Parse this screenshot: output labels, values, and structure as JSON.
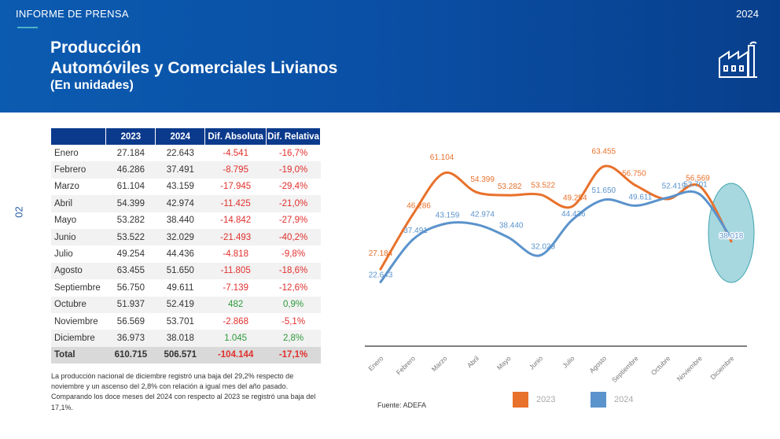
{
  "header": {
    "kicker": "INFORME DE PRENSA",
    "year": "2024",
    "title_line1": "Producción",
    "title_line2": "Automóviles y Comerciales Livianos",
    "subtitle": "(En unidades)",
    "icon": "factory-icon"
  },
  "page_number": "02",
  "table": {
    "columns": [
      "",
      "2023",
      "2024",
      "Dif. Absoluta",
      "Dif. Relativa"
    ],
    "rows": [
      [
        "Enero",
        "27.184",
        "22.643",
        "-4.541",
        "-16,7%"
      ],
      [
        "Febrero",
        "46.286",
        "37.491",
        "-8.795",
        "-19,0%"
      ],
      [
        "Marzo",
        "61.104",
        "43.159",
        "-17.945",
        "-29,4%"
      ],
      [
        "Abril",
        "54.399",
        "42.974",
        "-11.425",
        "-21,0%"
      ],
      [
        "Mayo",
        "53.282",
        "38.440",
        "-14.842",
        "-27,9%"
      ],
      [
        "Junio",
        "53.522",
        "32.029",
        "-21.493",
        "-40,2%"
      ],
      [
        "Julio",
        "49.254",
        "44.436",
        "-4.818",
        "-9,8%"
      ],
      [
        "Agosto",
        "63.455",
        "51.650",
        "-11.805",
        "-18,6%"
      ],
      [
        "Septiembre",
        "56.750",
        "49.611",
        "-7.139",
        "-12,6%"
      ],
      [
        "Octubre",
        "51.937",
        "52.419",
        "482",
        "0,9%"
      ],
      [
        "Noviembre",
        "56.569",
        "53.701",
        "-2.868",
        "-5,1%"
      ],
      [
        "Diciembre",
        "36.973",
        "38.018",
        "1.045",
        "2,8%"
      ]
    ],
    "total": [
      "Total",
      "610.715",
      "506.571",
      "-104.144",
      "-17,1%"
    ]
  },
  "note": {
    "line1": "La producción nacional de diciembre registró una baja del 29,2% respecto de noviembre y un ascenso del 2,8% con relación a igual mes del año pasado.",
    "line2": "Comparando los doce meses del 2024 con respecto al 2023 se registró una baja del 17,1%."
  },
  "source": "Fuente: ADEFA",
  "colors": {
    "series2023": "#e8712b",
    "series2024": "#5b93cc",
    "header": "#0b3a8c",
    "highlight": "#5fb8c4"
  },
  "chart_data": {
    "type": "line",
    "title": "",
    "categories": [
      "Enero",
      "Febrero",
      "Marzo",
      "Abril",
      "Mayo",
      "Junio",
      "Julio",
      "Agosto",
      "Septiembre",
      "Octubre",
      "Noviembre",
      "Diciembre"
    ],
    "series": [
      {
        "name": "2023",
        "values": [
          27184,
          46286,
          61104,
          54399,
          53282,
          53522,
          49254,
          63455,
          56750,
          51937,
          56569,
          36973
        ],
        "labels": [
          "27.184",
          "46.286",
          "61.104",
          "54.399",
          "53.282",
          "53.522",
          "49.254",
          "63.455",
          "56.750",
          "",
          "56.569",
          ""
        ]
      },
      {
        "name": "2024",
        "values": [
          22643,
          37491,
          43159,
          42974,
          38440,
          32029,
          44436,
          51650,
          49611,
          52419,
          53701,
          38018
        ],
        "labels": [
          "22.643",
          "37.491",
          "43.159",
          "42.974",
          "38.440",
          "32.029",
          "44.436",
          "51.650",
          "49.611",
          "52.419",
          "53.701",
          "38.018"
        ]
      }
    ],
    "xlabel": "",
    "ylabel": "",
    "ylim": [
      0,
      75000
    ],
    "legend": "bottom",
    "grid": false
  }
}
